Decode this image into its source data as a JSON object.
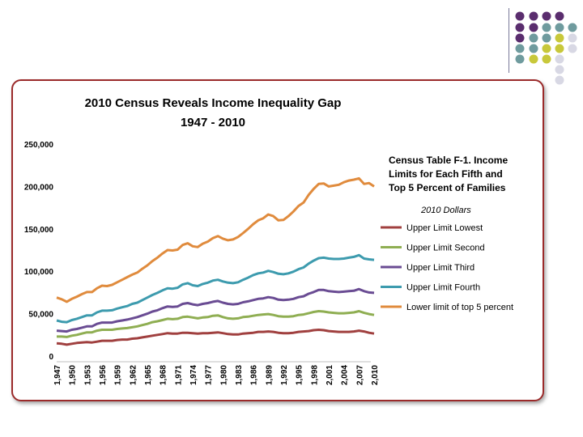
{
  "decoration": {
    "dot_colors": [
      "#5a2d6e",
      "#6f9b9e",
      "#c8c83a",
      "#d8d8e4"
    ]
  },
  "chart_data": {
    "type": "line",
    "title_line1": "2010 Census Reveals Income Inequality Gap",
    "title_line2": "1947 - 2010",
    "ylim": [
      0,
      250000
    ],
    "y_ticks": [
      "0",
      "50,000",
      "100,000",
      "150,000",
      "200,000",
      "250,000"
    ],
    "y_tick_values": [
      0,
      50000,
      100000,
      150000,
      200000,
      250000
    ],
    "x": [
      1947,
      1948,
      1949,
      1950,
      1951,
      1952,
      1953,
      1954,
      1955,
      1956,
      1957,
      1958,
      1959,
      1960,
      1961,
      1962,
      1963,
      1964,
      1965,
      1966,
      1967,
      1968,
      1969,
      1970,
      1971,
      1972,
      1973,
      1974,
      1975,
      1976,
      1977,
      1978,
      1979,
      1980,
      1981,
      1982,
      1983,
      1984,
      1985,
      1986,
      1987,
      1988,
      1989,
      1990,
      1991,
      1992,
      1993,
      1994,
      1995,
      1996,
      1997,
      1998,
      1999,
      2000,
      2001,
      2002,
      2003,
      2004,
      2005,
      2006,
      2007,
      2008,
      2009,
      2010
    ],
    "x_tick_labels": [
      "1,947",
      "1,950",
      "1,953",
      "1,956",
      "1,959",
      "1,962",
      "1,965",
      "1,968",
      "1,971",
      "1,974",
      "1,977",
      "1,980",
      "1,983",
      "1,986",
      "1,989",
      "1,992",
      "1,995",
      "1,998",
      "2,001",
      "2,004",
      "2,007",
      "2,010"
    ],
    "x_tick_years": [
      1947,
      1950,
      1953,
      1956,
      1959,
      1962,
      1965,
      1968,
      1971,
      1974,
      1977,
      1980,
      1983,
      1986,
      1989,
      1992,
      1995,
      1998,
      2001,
      2004,
      2007,
      2010
    ],
    "legend": {
      "title_lines": [
        "Census Table F-1. Income",
        "Limits for Each Fifth and",
        "Top 5 Percent of Families"
      ],
      "subtitle": "2010 Dollars"
    },
    "series": [
      {
        "name": "Upper Limit Lowest",
        "color": "#a0403f",
        "values": [
          15000,
          14500,
          13500,
          14500,
          15500,
          16000,
          16500,
          16000,
          17000,
          18000,
          18000,
          18000,
          19000,
          19500,
          19500,
          20500,
          21000,
          22000,
          23000,
          24000,
          25000,
          26000,
          27000,
          26500,
          26500,
          27500,
          27500,
          27000,
          26500,
          27000,
          27000,
          27500,
          28000,
          27000,
          26000,
          25500,
          25500,
          26500,
          27000,
          27500,
          28500,
          28500,
          29000,
          28500,
          27500,
          27000,
          27000,
          27500,
          28500,
          29000,
          29500,
          30500,
          31000,
          30500,
          29500,
          29000,
          28500,
          28500,
          28500,
          29000,
          30000,
          29000,
          27500,
          26500
        ]
      },
      {
        "name": "Upper Limit Second",
        "color": "#8fae52",
        "values": [
          23000,
          23000,
          22500,
          24000,
          25000,
          26500,
          28000,
          28000,
          30000,
          31000,
          31000,
          31000,
          32000,
          32500,
          33000,
          34000,
          35000,
          36500,
          38000,
          40000,
          41000,
          42500,
          44000,
          43500,
          44000,
          46000,
          46500,
          45500,
          44500,
          45500,
          46000,
          47500,
          48000,
          46000,
          44500,
          44000,
          44500,
          46000,
          46500,
          47500,
          48500,
          49000,
          49500,
          48500,
          47000,
          46500,
          46500,
          47000,
          48500,
          49000,
          50500,
          52000,
          53000,
          52500,
          51500,
          51000,
          50500,
          50500,
          51000,
          51500,
          53000,
          51000,
          49500,
          48500
        ]
      },
      {
        "name": "Upper Limit Third",
        "color": "#6a4c93",
        "values": [
          30000,
          29500,
          29000,
          31000,
          32000,
          33500,
          35000,
          35000,
          38000,
          39500,
          39500,
          39500,
          41000,
          42000,
          43000,
          44500,
          46000,
          48000,
          50000,
          52500,
          54000,
          56500,
          58500,
          58000,
          58500,
          61500,
          62500,
          61000,
          60000,
          61500,
          62500,
          64000,
          65000,
          63000,
          61500,
          61000,
          61500,
          63500,
          64500,
          66000,
          67500,
          68000,
          69500,
          68500,
          66500,
          66000,
          66500,
          67500,
          69500,
          70500,
          73500,
          75500,
          78000,
          78000,
          76500,
          76000,
          75500,
          76000,
          76500,
          77000,
          79000,
          76500,
          75000,
          74500
        ]
      },
      {
        "name": "Upper Limit Fourth",
        "color": "#3d9bae",
        "values": [
          42000,
          40500,
          40000,
          42500,
          44000,
          46000,
          48000,
          48000,
          51500,
          53500,
          53500,
          54000,
          56000,
          57500,
          59000,
          61500,
          63000,
          66000,
          69000,
          72000,
          74500,
          77500,
          80000,
          79500,
          80500,
          84500,
          86000,
          83500,
          82500,
          85000,
          86500,
          89000,
          90000,
          88000,
          86500,
          86000,
          87000,
          90000,
          92500,
          95500,
          97500,
          98500,
          100500,
          99000,
          97000,
          96500,
          97500,
          99500,
          102500,
          104500,
          109000,
          112500,
          115500,
          116000,
          115000,
          114500,
          114500,
          115000,
          116000,
          117000,
          119000,
          115000,
          114000,
          113500
        ]
      },
      {
        "name": "Lower limit of top 5 percent",
        "color": "#e08b3d",
        "values": [
          69000,
          67000,
          64000,
          67500,
          70000,
          73000,
          75500,
          75500,
          80000,
          83000,
          82500,
          84000,
          87000,
          90000,
          93000,
          96000,
          98500,
          103000,
          107000,
          112000,
          116000,
          121000,
          125000,
          124500,
          125500,
          131000,
          133000,
          129500,
          128500,
          132500,
          135000,
          139000,
          141500,
          138500,
          136500,
          137500,
          140500,
          145000,
          150000,
          155500,
          160000,
          162500,
          167000,
          165000,
          160000,
          160500,
          165000,
          170500,
          177000,
          181000,
          190000,
          197000,
          203000,
          203500,
          200000,
          201000,
          202000,
          205000,
          207000,
          208000,
          209500,
          203000,
          204000,
          200000
        ]
      }
    ]
  }
}
